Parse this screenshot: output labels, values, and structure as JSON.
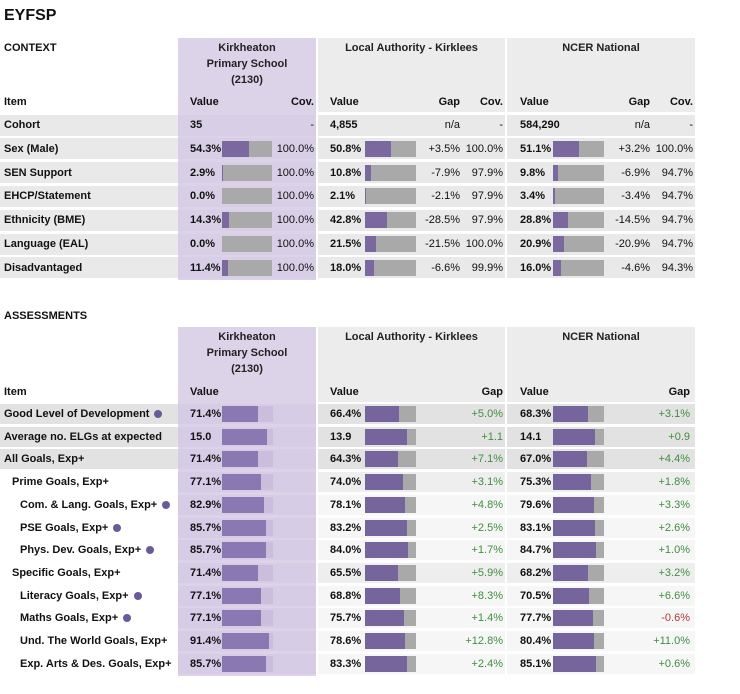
{
  "title": "EYFSP",
  "context": {
    "section": "CONTEXT",
    "groups": [
      "Kirkheaton Primary School (2130)",
      "Local Authority - Kirklees",
      "NCER National"
    ],
    "headers": [
      "Item",
      "Value",
      "Cov.",
      "Value",
      "Gap",
      "Cov.",
      "Value",
      "Gap",
      "Cov."
    ],
    "rows": [
      [
        "Cohort",
        "35",
        "-",
        "4,855",
        "n/a",
        "-",
        "584,290",
        "n/a",
        "-"
      ],
      [
        "Sex (Male)",
        "54.3%",
        "100.0%",
        "50.8%",
        "+3.5%",
        "100.0%",
        "51.1%",
        "+3.2%",
        "100.0%"
      ],
      [
        "SEN Support",
        "2.9%",
        "100.0%",
        "10.8%",
        "-7.9%",
        "97.9%",
        "9.8%",
        "-6.9%",
        "94.7%"
      ],
      [
        "EHCP/Statement",
        "0.0%",
        "100.0%",
        "2.1%",
        "-2.1%",
        "97.9%",
        "3.4%",
        "-3.4%",
        "94.7%"
      ],
      [
        "Ethnicity (BME)",
        "14.3%",
        "100.0%",
        "42.8%",
        "-28.5%",
        "97.9%",
        "28.8%",
        "-14.5%",
        "94.7%"
      ],
      [
        "Language (EAL)",
        "0.0%",
        "100.0%",
        "21.5%",
        "-21.5%",
        "100.0%",
        "20.9%",
        "-20.9%",
        "94.7%"
      ],
      [
        "Disadvantaged",
        "11.4%",
        "100.0%",
        "18.0%",
        "-6.6%",
        "99.9%",
        "16.0%",
        "-4.6%",
        "94.3%"
      ]
    ]
  },
  "assessments": {
    "section": "ASSESSMENTS",
    "groups": [
      "Kirkheaton Primary School (2130)",
      "Local Authority - Kirklees",
      "NCER National"
    ],
    "headers": [
      "Item",
      "Value",
      "Value",
      "Gap",
      "Value",
      "Gap"
    ],
    "rows": [
      [
        "Good Level of Development",
        "71.4%",
        "66.4%",
        "+5.0%",
        "68.3%",
        "+3.1%"
      ],
      [
        "Average no. ELGs at expected",
        "15.0",
        "13.9",
        "+1.1",
        "14.1",
        "+0.9"
      ],
      [
        "All Goals, Exp+",
        "71.4%",
        "64.3%",
        "+7.1%",
        "67.0%",
        "+4.4%"
      ],
      [
        "Prime Goals, Exp+",
        "77.1%",
        "74.0%",
        "+3.1%",
        "75.3%",
        "+1.8%"
      ],
      [
        "Com. & Lang. Goals, Exp+",
        "82.9%",
        "78.1%",
        "+4.8%",
        "79.6%",
        "+3.3%"
      ],
      [
        "PSE Goals, Exp+",
        "85.7%",
        "83.2%",
        "+2.5%",
        "83.1%",
        "+2.6%"
      ],
      [
        "Phys. Dev. Goals, Exp+",
        "85.7%",
        "84.0%",
        "+1.7%",
        "84.7%",
        "+1.0%"
      ],
      [
        "Specific Goals, Exp+",
        "71.4%",
        "65.5%",
        "+5.9%",
        "68.2%",
        "+3.2%"
      ],
      [
        "Literacy Goals, Exp+",
        "77.1%",
        "68.8%",
        "+8.3%",
        "70.5%",
        "+6.6%"
      ],
      [
        "Maths Goals, Exp+",
        "77.1%",
        "75.7%",
        "+1.4%",
        "77.7%",
        "-0.6%"
      ],
      [
        "Und. The World Goals, Exp+",
        "91.4%",
        "78.6%",
        "+12.8%",
        "80.4%",
        "+11.0%"
      ],
      [
        "Exp. Arts & Des. Goals, Exp+",
        "85.7%",
        "83.3%",
        "+2.4%",
        "85.1%",
        "+0.6%"
      ]
    ]
  }
}
